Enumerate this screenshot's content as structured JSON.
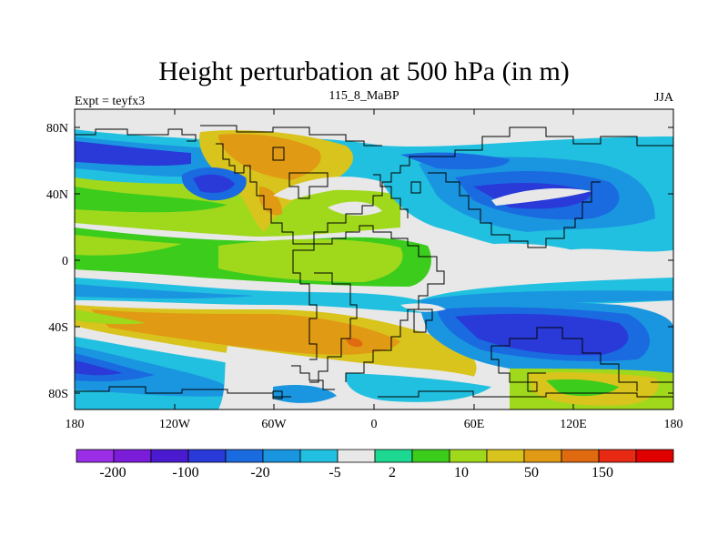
{
  "title": "Height perturbation at 500 hPa (in m)",
  "experiment": "Expt = teyfx3",
  "time_label": "115_8_MaBP",
  "season": "JJA",
  "lat_ticks": [
    "80N",
    "40N",
    "0",
    "40S",
    "80S"
  ],
  "lon_ticks": [
    "180",
    "120W",
    "60W",
    "0",
    "60E",
    "120E",
    "180"
  ],
  "colorbar": {
    "colors": [
      "#9a2ee6",
      "#7a1cd8",
      "#4a1ad0",
      "#2a3ad8",
      "#1a6ae0",
      "#1a96e0",
      "#22c0e0",
      "#e8e8e8",
      "#1cd890",
      "#3ccc1c",
      "#a0d81c",
      "#d8c41c",
      "#e09a14",
      "#e06a10",
      "#e82a14",
      "#e00000"
    ],
    "labels": [
      "-200",
      "-100",
      "-20",
      "-5",
      "2",
      "10",
      "50",
      "150"
    ]
  }
}
